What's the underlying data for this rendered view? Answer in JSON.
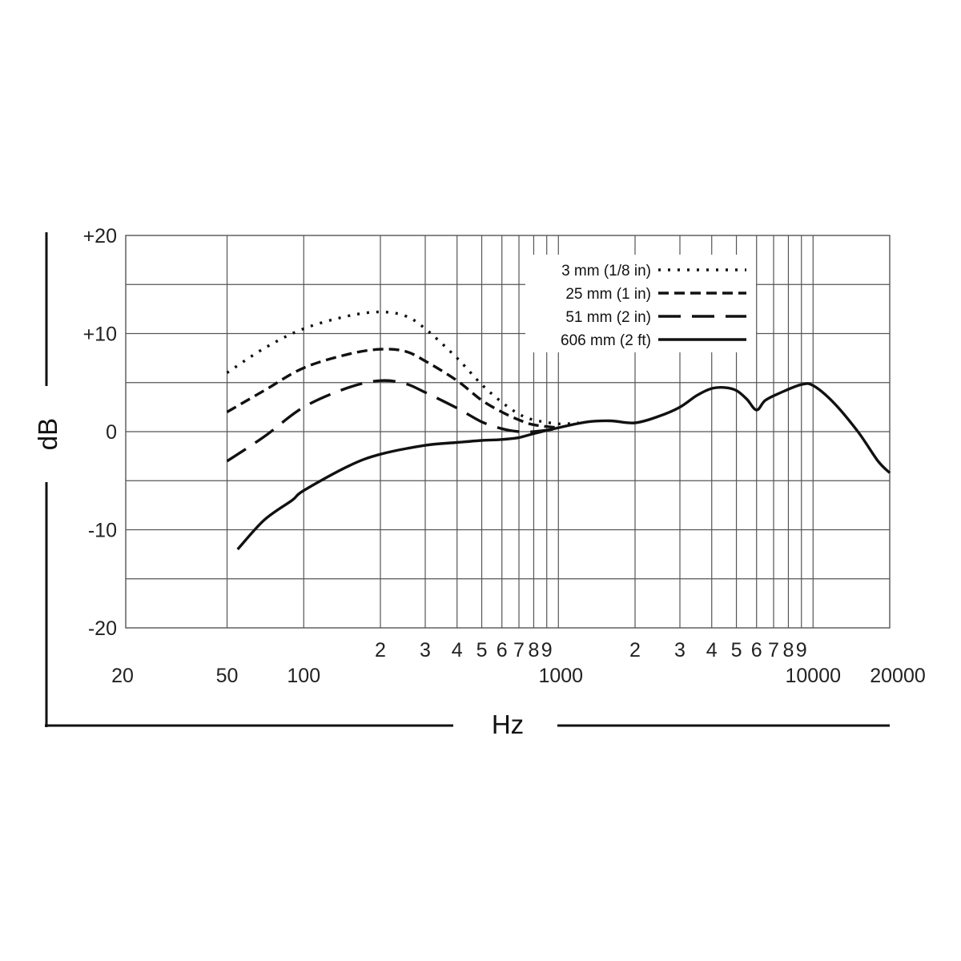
{
  "chart_data": {
    "type": "line",
    "title": "",
    "xlabel": "Hz",
    "ylabel": "dB",
    "x_scale": "log",
    "xlim": [
      20,
      20000
    ],
    "ylim": [
      -20,
      20
    ],
    "grid": true,
    "legend_position": "top-right",
    "y_ticks": [
      {
        "value": 20,
        "label": "+20"
      },
      {
        "value": 10,
        "label": "+10"
      },
      {
        "value": 0,
        "label": "0"
      },
      {
        "value": -10,
        "label": "-10"
      },
      {
        "value": -20,
        "label": "-20"
      }
    ],
    "x_major_labels": [
      {
        "value": 20,
        "label": "20"
      },
      {
        "value": 50,
        "label": "50"
      },
      {
        "value": 100,
        "label": "100"
      },
      {
        "value": 1000,
        "label": "1000"
      },
      {
        "value": 10000,
        "label": "10000"
      },
      {
        "value": 20000,
        "label": "20000"
      }
    ],
    "x_minor_labels": [
      {
        "value": 200,
        "label": "2"
      },
      {
        "value": 300,
        "label": "3"
      },
      {
        "value": 400,
        "label": "4"
      },
      {
        "value": 500,
        "label": "5"
      },
      {
        "value": 600,
        "label": "6"
      },
      {
        "value": 700,
        "label": "7"
      },
      {
        "value": 800,
        "label": "8"
      },
      {
        "value": 900,
        "label": "9"
      },
      {
        "value": 2000,
        "label": "2"
      },
      {
        "value": 3000,
        "label": "3"
      },
      {
        "value": 4000,
        "label": "4"
      },
      {
        "value": 5000,
        "label": "5"
      },
      {
        "value": 6000,
        "label": "6"
      },
      {
        "value": 7000,
        "label": "7"
      },
      {
        "value": 8000,
        "label": "8"
      },
      {
        "value": 9000,
        "label": "9"
      }
    ],
    "series": [
      {
        "name": "3 mm (1/8 in)",
        "style": "dotted",
        "points": [
          [
            50,
            6
          ],
          [
            70,
            8.5
          ],
          [
            100,
            10.5
          ],
          [
            150,
            11.8
          ],
          [
            200,
            12.2
          ],
          [
            250,
            11.8
          ],
          [
            300,
            10.5
          ],
          [
            400,
            7.5
          ],
          [
            500,
            4.8
          ],
          [
            600,
            3
          ],
          [
            700,
            1.8
          ],
          [
            800,
            1.2
          ],
          [
            1000,
            0.8
          ],
          [
            1200,
            0.9
          ]
        ]
      },
      {
        "name": "25 mm (1 in)",
        "style": "dashed",
        "points": [
          [
            50,
            2
          ],
          [
            70,
            4.2
          ],
          [
            100,
            6.5
          ],
          [
            150,
            7.9
          ],
          [
            200,
            8.4
          ],
          [
            250,
            8.2
          ],
          [
            300,
            7.2
          ],
          [
            400,
            5.2
          ],
          [
            500,
            3.2
          ],
          [
            600,
            2
          ],
          [
            700,
            1.2
          ],
          [
            800,
            0.7
          ],
          [
            1000,
            0.4
          ]
        ]
      },
      {
        "name": "51 mm (2 in)",
        "style": "long-dashed",
        "points": [
          [
            50,
            -3
          ],
          [
            70,
            -0.5
          ],
          [
            100,
            2.5
          ],
          [
            150,
            4.5
          ],
          [
            200,
            5.2
          ],
          [
            250,
            4.9
          ],
          [
            300,
            4
          ],
          [
            400,
            2.4
          ],
          [
            500,
            1
          ],
          [
            600,
            0.3
          ],
          [
            700,
            0
          ],
          [
            800,
            0
          ],
          [
            1000,
            0.3
          ]
        ]
      },
      {
        "name": "606 mm (2 ft)",
        "style": "solid",
        "points": [
          [
            55,
            -12
          ],
          [
            70,
            -9
          ],
          [
            90,
            -7
          ],
          [
            100,
            -6
          ],
          [
            150,
            -3.5
          ],
          [
            200,
            -2.3
          ],
          [
            300,
            -1.4
          ],
          [
            400,
            -1.1
          ],
          [
            500,
            -0.9
          ],
          [
            600,
            -0.8
          ],
          [
            700,
            -0.6
          ],
          [
            800,
            -0.2
          ],
          [
            1000,
            0.4
          ],
          [
            1300,
            1
          ],
          [
            1600,
            1.1
          ],
          [
            2000,
            0.9
          ],
          [
            2500,
            1.6
          ],
          [
            3000,
            2.5
          ],
          [
            3500,
            3.7
          ],
          [
            4000,
            4.4
          ],
          [
            4500,
            4.5
          ],
          [
            5000,
            4.2
          ],
          [
            5500,
            3.3
          ],
          [
            6000,
            2.2
          ],
          [
            6500,
            3.2
          ],
          [
            7500,
            4
          ],
          [
            9000,
            4.8
          ],
          [
            10000,
            4.7
          ],
          [
            12000,
            3
          ],
          [
            15000,
            0
          ],
          [
            18000,
            -3
          ],
          [
            20000,
            -4.2
          ]
        ]
      }
    ]
  }
}
